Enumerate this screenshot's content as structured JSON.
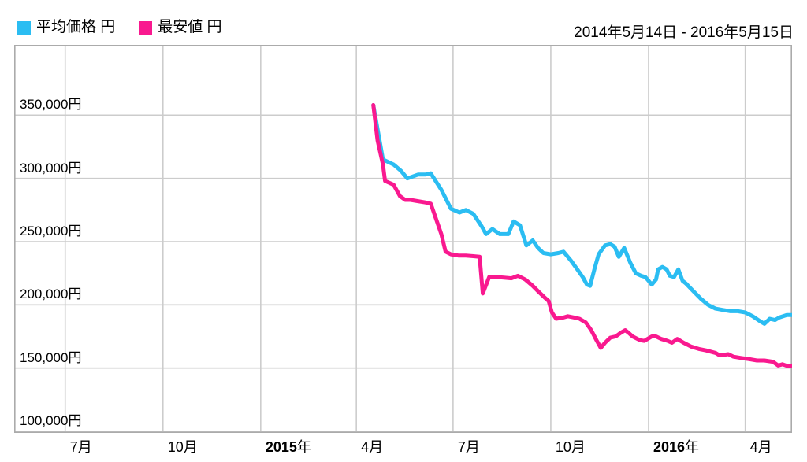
{
  "legend": {
    "items": [
      {
        "label": "平均価格 円",
        "color": "#2bbdf2"
      },
      {
        "label": "最安値 円",
        "color": "#f9198f"
      }
    ]
  },
  "header": {
    "date_range": "2014年5月14日 - 2016年5月15日"
  },
  "chart_data": {
    "type": "line",
    "title": "",
    "xlabel": "",
    "ylabel": "",
    "legend_position": "top-left",
    "grid": true,
    "grid_color": "#cccccc",
    "border_color": "#ababab",
    "x_range": {
      "start": "2014-05-14",
      "end": "2016-05-15"
    },
    "ylim": [
      98750,
      405600
    ],
    "x_gridlines": [
      {
        "date": "2014-07-01",
        "label": "7月"
      },
      {
        "date": "2014-10-01",
        "label": "10月"
      },
      {
        "date": "2015-01-01",
        "label": "2015年"
      },
      {
        "date": "2015-04-01",
        "label": "4月"
      },
      {
        "date": "2015-07-01",
        "label": "7月"
      },
      {
        "date": "2015-10-01",
        "label": "10月"
      },
      {
        "date": "2016-01-01",
        "label": "2016年"
      },
      {
        "date": "2016-04-01",
        "label": "4月"
      }
    ],
    "y_gridlines": [
      {
        "value": 350000,
        "label": "350,000円"
      },
      {
        "value": 300000,
        "label": "300,000円"
      },
      {
        "value": 250000,
        "label": "250,000円"
      },
      {
        "value": 200000,
        "label": "200,000円"
      },
      {
        "value": 150000,
        "label": "150,000円"
      },
      {
        "value": 100000,
        "label": "100,000円"
      }
    ],
    "series": [
      {
        "name": "平均価格 円",
        "color": "#2bbdf2",
        "points": [
          [
            "2015-04-17",
            358000
          ],
          [
            "2015-04-26",
            315000
          ],
          [
            "2015-05-06",
            311000
          ],
          [
            "2015-05-13",
            306000
          ],
          [
            "2015-05-19",
            300000
          ],
          [
            "2015-05-29",
            303000
          ],
          [
            "2015-06-05",
            303000
          ],
          [
            "2015-06-10",
            304000
          ],
          [
            "2015-06-20",
            291000
          ],
          [
            "2015-06-29",
            276000
          ],
          [
            "2015-07-07",
            273000
          ],
          [
            "2015-07-13",
            275000
          ],
          [
            "2015-07-20",
            272000
          ],
          [
            "2015-07-28",
            262000
          ],
          [
            "2015-08-01",
            256000
          ],
          [
            "2015-08-07",
            260000
          ],
          [
            "2015-08-14",
            256000
          ],
          [
            "2015-08-22",
            256000
          ],
          [
            "2015-08-27",
            266000
          ],
          [
            "2015-09-02",
            263000
          ],
          [
            "2015-09-08",
            247000
          ],
          [
            "2015-09-14",
            251000
          ],
          [
            "2015-09-19",
            245000
          ],
          [
            "2015-09-24",
            241000
          ],
          [
            "2015-10-01",
            240000
          ],
          [
            "2015-10-08",
            241000
          ],
          [
            "2015-10-13",
            242000
          ],
          [
            "2015-10-20",
            235000
          ],
          [
            "2015-10-26",
            228000
          ],
          [
            "2015-10-31",
            222000
          ],
          [
            "2015-11-04",
            216000
          ],
          [
            "2015-11-07",
            215000
          ],
          [
            "2015-11-11",
            228000
          ],
          [
            "2015-11-15",
            240000
          ],
          [
            "2015-11-21",
            247000
          ],
          [
            "2015-11-26",
            248000
          ],
          [
            "2015-11-30",
            246000
          ],
          [
            "2015-12-04",
            238000
          ],
          [
            "2015-12-09",
            245000
          ],
          [
            "2015-12-15",
            233000
          ],
          [
            "2015-12-20",
            225000
          ],
          [
            "2015-12-25",
            223000
          ],
          [
            "2015-12-29",
            222000
          ],
          [
            "2016-01-01",
            219000
          ],
          [
            "2016-01-04",
            216000
          ],
          [
            "2016-01-08",
            220000
          ],
          [
            "2016-01-10",
            228000
          ],
          [
            "2016-01-14",
            230000
          ],
          [
            "2016-01-18",
            228000
          ],
          [
            "2016-01-21",
            223000
          ],
          [
            "2016-01-25",
            222000
          ],
          [
            "2016-01-29",
            228000
          ],
          [
            "2016-02-02",
            219000
          ],
          [
            "2016-02-05",
            217000
          ],
          [
            "2016-02-12",
            211000
          ],
          [
            "2016-02-19",
            205000
          ],
          [
            "2016-02-26",
            200000
          ],
          [
            "2016-03-04",
            197000
          ],
          [
            "2016-03-11",
            196000
          ],
          [
            "2016-03-18",
            195000
          ],
          [
            "2016-03-25",
            195000
          ],
          [
            "2016-04-01",
            194000
          ],
          [
            "2016-04-08",
            191000
          ],
          [
            "2016-04-15",
            187000
          ],
          [
            "2016-04-19",
            185000
          ],
          [
            "2016-04-24",
            189000
          ],
          [
            "2016-04-29",
            188000
          ],
          [
            "2016-05-03",
            190000
          ],
          [
            "2016-05-10",
            192000
          ],
          [
            "2016-05-15",
            192000
          ]
        ]
      },
      {
        "name": "最安値 円",
        "color": "#f9198f",
        "points": [
          [
            "2015-04-17",
            358000
          ],
          [
            "2015-04-21",
            330000
          ],
          [
            "2015-04-26",
            311000
          ],
          [
            "2015-04-28",
            298000
          ],
          [
            "2015-05-06",
            295000
          ],
          [
            "2015-05-12",
            286000
          ],
          [
            "2015-05-17",
            283000
          ],
          [
            "2015-05-22",
            283000
          ],
          [
            "2015-05-29",
            282000
          ],
          [
            "2015-06-05",
            281000
          ],
          [
            "2015-06-10",
            280000
          ],
          [
            "2015-06-20",
            256000
          ],
          [
            "2015-06-24",
            242000
          ],
          [
            "2015-06-29",
            240000
          ],
          [
            "2015-07-06",
            239000
          ],
          [
            "2015-07-13",
            239000
          ],
          [
            "2015-07-20",
            238500
          ],
          [
            "2015-07-26",
            238000
          ],
          [
            "2015-07-29",
            209000
          ],
          [
            "2015-08-04",
            222000
          ],
          [
            "2015-08-11",
            222000
          ],
          [
            "2015-08-18",
            221500
          ],
          [
            "2015-08-25",
            221000
          ],
          [
            "2015-08-31",
            223000
          ],
          [
            "2015-09-07",
            220000
          ],
          [
            "2015-09-14",
            215000
          ],
          [
            "2015-09-20",
            210000
          ],
          [
            "2015-09-25",
            206000
          ],
          [
            "2015-09-29",
            203000
          ],
          [
            "2015-10-02",
            194000
          ],
          [
            "2015-10-06",
            189000
          ],
          [
            "2015-10-13",
            190000
          ],
          [
            "2015-10-17",
            191000
          ],
          [
            "2015-10-23",
            190000
          ],
          [
            "2015-10-28",
            189000
          ],
          [
            "2015-11-03",
            186000
          ],
          [
            "2015-11-08",
            180000
          ],
          [
            "2015-11-13",
            172000
          ],
          [
            "2015-11-17",
            166000
          ],
          [
            "2015-11-21",
            170000
          ],
          [
            "2015-11-26",
            174000
          ],
          [
            "2015-12-01",
            175000
          ],
          [
            "2015-12-06",
            178000
          ],
          [
            "2015-12-10",
            180000
          ],
          [
            "2015-12-13",
            178000
          ],
          [
            "2015-12-17",
            175000
          ],
          [
            "2015-12-24",
            172000
          ],
          [
            "2015-12-28",
            171500
          ],
          [
            "2015-12-31",
            173000
          ],
          [
            "2016-01-04",
            175000
          ],
          [
            "2016-01-08",
            175000
          ],
          [
            "2016-01-13",
            173000
          ],
          [
            "2016-01-19",
            171500
          ],
          [
            "2016-01-23",
            170000
          ],
          [
            "2016-01-28",
            173000
          ],
          [
            "2016-02-03",
            170000
          ],
          [
            "2016-02-10",
            167000
          ],
          [
            "2016-02-18",
            165000
          ],
          [
            "2016-02-24",
            164000
          ],
          [
            "2016-03-04",
            162000
          ],
          [
            "2016-03-08",
            160000
          ],
          [
            "2016-03-16",
            161000
          ],
          [
            "2016-03-21",
            159000
          ],
          [
            "2016-03-28",
            158000
          ],
          [
            "2016-04-05",
            157000
          ],
          [
            "2016-04-12",
            156000
          ],
          [
            "2016-04-19",
            156000
          ],
          [
            "2016-04-27",
            155000
          ],
          [
            "2016-05-02",
            152000
          ],
          [
            "2016-05-06",
            153000
          ],
          [
            "2016-05-11",
            151500
          ],
          [
            "2016-05-15",
            152000
          ]
        ]
      }
    ]
  }
}
